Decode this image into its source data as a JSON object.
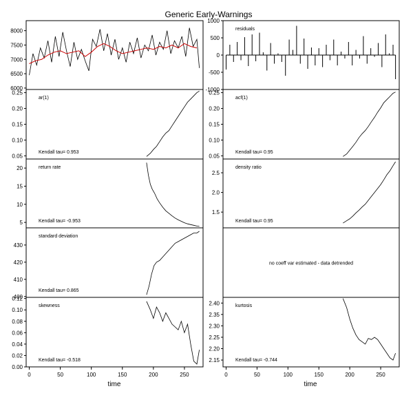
{
  "title": "Generic Early-Warnings",
  "xlabel": "time",
  "colors": {
    "line": "#000000",
    "smooth": "#cc0000",
    "frame": "#000000"
  },
  "chart_data": [
    {
      "id": "raw",
      "type": "line",
      "ylim": [
        5950,
        8350
      ],
      "yticks": [
        6000,
        6500,
        7000,
        7500,
        8000
      ],
      "series": [
        {
          "x": [
            0,
            6,
            12,
            18,
            24,
            30,
            36,
            42,
            48,
            54,
            60,
            66,
            72,
            78,
            84,
            90,
            96,
            102,
            108,
            114,
            120,
            126,
            132,
            138,
            144,
            150,
            156,
            162,
            168,
            174,
            180,
            186,
            192,
            198,
            204,
            210,
            216,
            222,
            228,
            234,
            240,
            246,
            252,
            258,
            264,
            270,
            274
          ],
          "values": [
            6450,
            7200,
            6800,
            7400,
            7050,
            7650,
            6900,
            7800,
            7100,
            7950,
            7300,
            6750,
            7600,
            7000,
            7350,
            6950,
            6600,
            7700,
            7450,
            8050,
            7300,
            7900,
            7150,
            7700,
            7000,
            7400,
            6900,
            7600,
            7200,
            7750,
            7050,
            7500,
            7300,
            7850,
            7150,
            7600,
            7350,
            8000,
            7200,
            7650,
            7400,
            7800,
            7100,
            8100,
            7450,
            7700,
            6700
          ]
        },
        {
          "x": [
            0,
            10,
            20,
            30,
            40,
            50,
            60,
            70,
            80,
            90,
            100,
            110,
            120,
            130,
            140,
            150,
            160,
            170,
            180,
            190,
            200,
            210,
            220,
            230,
            240,
            250,
            260,
            270
          ],
          "values": [
            6850,
            6950,
            7000,
            7150,
            7250,
            7300,
            7200,
            7250,
            7300,
            7100,
            7250,
            7450,
            7550,
            7450,
            7300,
            7200,
            7250,
            7300,
            7350,
            7400,
            7350,
            7450,
            7400,
            7500,
            7400,
            7550,
            7450,
            7400
          ]
        }
      ]
    },
    {
      "id": "residuals",
      "type": "bar",
      "label": "residuals",
      "ylim": [
        -1000,
        1000
      ],
      "yticks": [
        -1000,
        -500,
        0,
        500,
        1000
      ],
      "x": [
        0,
        6,
        12,
        18,
        24,
        30,
        36,
        42,
        48,
        54,
        60,
        66,
        72,
        78,
        84,
        90,
        96,
        102,
        108,
        114,
        120,
        126,
        132,
        138,
        144,
        150,
        156,
        162,
        168,
        174,
        180,
        186,
        192,
        198,
        204,
        210,
        216,
        222,
        228,
        234,
        240,
        246,
        252,
        258,
        264,
        270,
        274
      ],
      "values": [
        -420,
        300,
        -200,
        380,
        -150,
        520,
        -320,
        600,
        -180,
        650,
        80,
        -450,
        350,
        -250,
        50,
        -200,
        -600,
        450,
        150,
        850,
        -250,
        480,
        -400,
        220,
        -300,
        200,
        -350,
        300,
        -150,
        450,
        -300,
        100,
        -100,
        380,
        -300,
        150,
        -100,
        550,
        -250,
        200,
        -50,
        350,
        -350,
        600,
        50,
        300,
        -700
      ]
    },
    {
      "id": "ar1",
      "type": "line",
      "label": "ar(1)",
      "ylim": [
        0.04,
        0.26
      ],
      "yticks": [
        0.05,
        0.1,
        0.15,
        0.2,
        0.25
      ],
      "kendall": "Kendall tau= 0.953",
      "x": [
        189,
        195,
        200,
        205,
        210,
        215,
        220,
        225,
        230,
        235,
        240,
        245,
        250,
        255,
        260,
        265,
        270,
        274
      ],
      "values": [
        0.048,
        0.058,
        0.07,
        0.08,
        0.095,
        0.11,
        0.122,
        0.13,
        0.145,
        0.16,
        0.175,
        0.19,
        0.205,
        0.22,
        0.23,
        0.24,
        0.25,
        0.255
      ]
    },
    {
      "id": "acf1",
      "type": "line",
      "label": "acf(1)",
      "ylim": [
        0.04,
        0.26
      ],
      "yticks": [
        0.05,
        0.1,
        0.15,
        0.2,
        0.25
      ],
      "kendall": "Kendall tau= 0.95",
      "x": [
        189,
        195,
        200,
        205,
        210,
        215,
        220,
        225,
        230,
        235,
        240,
        245,
        250,
        255,
        260,
        265,
        270,
        274
      ],
      "values": [
        0.048,
        0.056,
        0.068,
        0.08,
        0.093,
        0.108,
        0.12,
        0.13,
        0.143,
        0.158,
        0.172,
        0.188,
        0.202,
        0.218,
        0.228,
        0.238,
        0.248,
        0.252
      ]
    },
    {
      "id": "return-rate",
      "type": "line",
      "label": "return rate",
      "ylim": [
        3.5,
        22.5
      ],
      "yticks": [
        5,
        10,
        15,
        20
      ],
      "kendall": "Kendall tau= -0.953",
      "x": [
        189,
        192,
        195,
        198,
        202,
        206,
        210,
        215,
        220,
        225,
        230,
        235,
        240,
        245,
        250,
        255,
        260,
        265,
        270,
        274
      ],
      "values": [
        21.5,
        18.0,
        15.5,
        14.2,
        13.0,
        11.5,
        10.4,
        9.2,
        8.2,
        7.5,
        6.8,
        6.2,
        5.7,
        5.3,
        4.9,
        4.6,
        4.4,
        4.2,
        4.0,
        3.9
      ]
    },
    {
      "id": "density-ratio",
      "type": "line",
      "label": "density ratio",
      "ylim": [
        1.1,
        2.85
      ],
      "yticks": [
        1.5,
        2.0,
        2.5
      ],
      "kendall": "Kendall tau= 0.95",
      "x": [
        189,
        195,
        200,
        205,
        210,
        215,
        220,
        225,
        230,
        235,
        240,
        245,
        250,
        255,
        260,
        265,
        270,
        274
      ],
      "values": [
        1.22,
        1.28,
        1.33,
        1.4,
        1.48,
        1.55,
        1.63,
        1.7,
        1.8,
        1.9,
        2.0,
        2.1,
        2.2,
        2.32,
        2.45,
        2.55,
        2.68,
        2.78
      ]
    },
    {
      "id": "standard-deviation",
      "type": "line",
      "label": "standard deviation",
      "ylim": [
        399.5,
        440
      ],
      "yticks": [
        400,
        410,
        420,
        430
      ],
      "kendall": "Kendall tau= 0.865",
      "x": [
        189,
        193,
        197,
        201,
        205,
        210,
        215,
        220,
        225,
        230,
        235,
        240,
        245,
        250,
        255,
        260,
        265,
        270,
        274
      ],
      "values": [
        401,
        406,
        413,
        418,
        420,
        421,
        423,
        425,
        427,
        429,
        431,
        432,
        433,
        434,
        435,
        436,
        437,
        437,
        438
      ]
    },
    {
      "id": "coeff-var",
      "type": "text",
      "message": "no coeff var estimated - data detrended"
    },
    {
      "id": "skewness",
      "type": "line",
      "label": "skewness",
      "ylim": [
        0.0,
        0.122
      ],
      "yticks": [
        0.0,
        0.02,
        0.04,
        0.06,
        0.08,
        0.1,
        0.12
      ],
      "kendall": "Kendall tau= -0.518",
      "x": [
        189,
        195,
        200,
        205,
        210,
        215,
        220,
        225,
        230,
        235,
        240,
        245,
        250,
        255,
        260,
        265,
        270,
        274
      ],
      "values": [
        0.115,
        0.1,
        0.085,
        0.105,
        0.095,
        0.08,
        0.095,
        0.085,
        0.075,
        0.07,
        0.065,
        0.08,
        0.06,
        0.075,
        0.04,
        0.01,
        0.005,
        0.03
      ]
    },
    {
      "id": "kurtosis",
      "type": "line",
      "label": "kurtosis",
      "ylim": [
        2.12,
        2.425
      ],
      "yticks": [
        2.15,
        2.2,
        2.25,
        2.3,
        2.35,
        2.4
      ],
      "kendall": "Kendall tau= -0.744",
      "x": [
        189,
        195,
        200,
        205,
        210,
        215,
        220,
        225,
        230,
        235,
        240,
        245,
        250,
        255,
        260,
        265,
        270,
        274
      ],
      "values": [
        2.42,
        2.38,
        2.33,
        2.29,
        2.26,
        2.24,
        2.23,
        2.22,
        2.245,
        2.24,
        2.25,
        2.24,
        2.22,
        2.2,
        2.18,
        2.16,
        2.15,
        2.18
      ]
    }
  ],
  "xticks": [
    0,
    50,
    100,
    150,
    200,
    250
  ],
  "xlim": [
    -5,
    280
  ]
}
